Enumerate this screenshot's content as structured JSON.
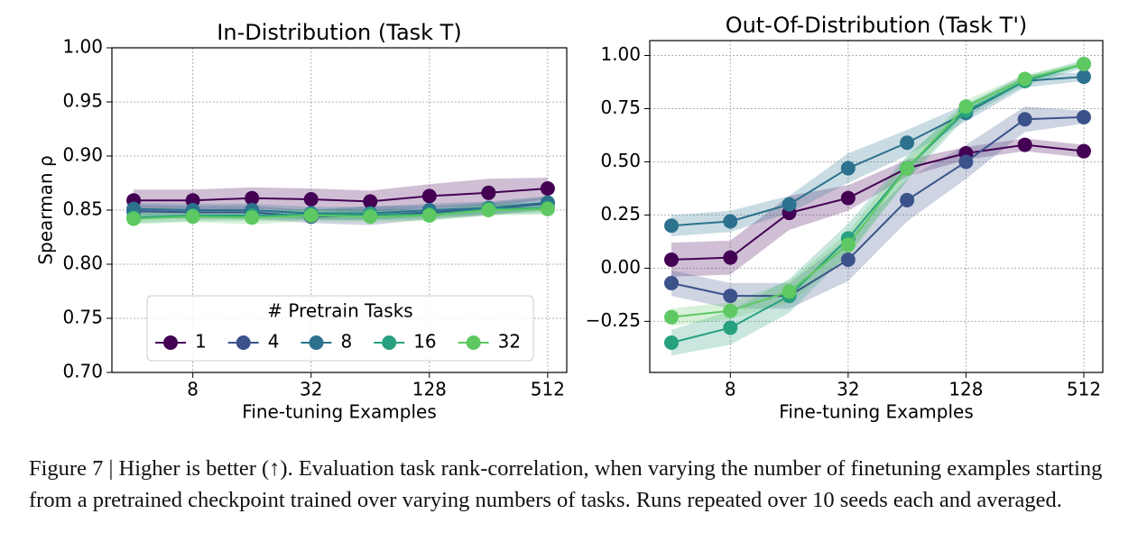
{
  "chart_data": [
    {
      "type": "line",
      "title": "In-Distribution (Task T)",
      "x_label": "Fine-tuning Examples",
      "y_label": "Spearman ρ",
      "x": [
        4,
        8,
        16,
        32,
        64,
        128,
        256,
        512
      ],
      "xlim": [
        3.1,
        640
      ],
      "xscale": "log2",
      "xticks": [
        8,
        32,
        128,
        512
      ],
      "ylim": [
        0.7,
        1.0
      ],
      "yticks": [
        {
          "value": 0.7,
          "label": "0.70"
        },
        0.75,
        {
          "value": 0.8,
          "label": "0.80"
        },
        0.85,
        {
          "value": 0.9,
          "label": "0.90"
        },
        0.95,
        {
          "value": 1.0,
          "label": "1.00"
        }
      ],
      "grid": true,
      "legend": "lower center",
      "legend_title": "# Pretrain Tasks",
      "series": [
        {
          "name": "1",
          "color": "#440154",
          "values": [
            0.859,
            0.859,
            0.861,
            0.86,
            0.858,
            0.863,
            0.866,
            0.87
          ],
          "errors": [
            0.01,
            0.01,
            0.01,
            0.01,
            0.01,
            0.011,
            0.013,
            0.01
          ]
        },
        {
          "name": "4",
          "color": "#3b528b",
          "values": [
            0.849,
            0.848,
            0.848,
            0.844,
            0.845,
            0.848,
            0.851,
            0.856
          ],
          "errors": [
            0.006,
            0.006,
            0.006,
            0.006,
            0.009,
            0.006,
            0.006,
            0.006
          ]
        },
        {
          "name": "8",
          "color": "#2c728e",
          "values": [
            0.851,
            0.85,
            0.85,
            0.847,
            0.847,
            0.85,
            0.852,
            0.857
          ],
          "errors": [
            0.006,
            0.006,
            0.006,
            0.006,
            0.006,
            0.006,
            0.006,
            0.006
          ]
        },
        {
          "name": "16",
          "color": "#27a17f",
          "values": [
            0.843,
            0.845,
            0.845,
            0.846,
            0.846,
            0.846,
            0.851,
            0.852
          ],
          "errors": [
            0.005,
            0.005,
            0.005,
            0.005,
            0.005,
            0.005,
            0.005,
            0.005
          ]
        },
        {
          "name": "32",
          "color": "#5ec962",
          "values": [
            0.842,
            0.844,
            0.843,
            0.845,
            0.844,
            0.845,
            0.85,
            0.851
          ],
          "errors": [
            0.005,
            0.005,
            0.006,
            0.005,
            0.005,
            0.005,
            0.005,
            0.005
          ]
        }
      ]
    },
    {
      "type": "line",
      "title": "Out-Of-Distribution (Task T')",
      "x_label": "Fine-tuning Examples",
      "x": [
        4,
        8,
        16,
        32,
        64,
        128,
        256,
        512
      ],
      "xlim": [
        3.1,
        640
      ],
      "xscale": "log2",
      "xticks": [
        8,
        32,
        128,
        512
      ],
      "ylim": [
        -0.49,
        1.07
      ],
      "yticks": [
        {
          "value": -0.25,
          "label": "−0.25"
        },
        {
          "value": 0,
          "label": "0.00"
        },
        0.25,
        {
          "value": 0.5,
          "label": "0.50"
        },
        0.75,
        {
          "value": 1.0,
          "label": "1.00"
        }
      ],
      "grid": true,
      "series": [
        {
          "color": "#440154",
          "values": [
            0.04,
            0.05,
            0.26,
            0.33,
            0.47,
            0.54,
            0.58,
            0.55
          ],
          "errors": [
            0.08,
            0.08,
            0.08,
            0.06,
            0.04,
            0.03,
            0.03,
            0.03
          ]
        },
        {
          "color": "#3b528b",
          "values": [
            -0.07,
            -0.13,
            -0.13,
            0.04,
            0.32,
            0.5,
            0.7,
            0.71
          ],
          "errors": [
            0.06,
            0.06,
            0.06,
            0.1,
            0.1,
            0.08,
            0.06,
            0.03
          ]
        },
        {
          "color": "#2c728e",
          "values": [
            0.2,
            0.22,
            0.3,
            0.47,
            0.59,
            0.73,
            0.88,
            0.9
          ],
          "errors": [
            0.05,
            0.05,
            0.04,
            0.07,
            0.06,
            0.04,
            0.03,
            0.02
          ]
        },
        {
          "color": "#27a17f",
          "values": [
            -0.35,
            -0.28,
            -0.13,
            0.14,
            0.47,
            0.74,
            0.88,
            0.96
          ],
          "errors": [
            0.06,
            0.08,
            0.08,
            0.07,
            0.06,
            0.03,
            0.02,
            0.02
          ]
        },
        {
          "color": "#5ec962",
          "values": [
            -0.23,
            -0.2,
            -0.11,
            0.11,
            0.47,
            0.76,
            0.89,
            0.96
          ],
          "errors": [
            0.04,
            0.04,
            0.05,
            0.06,
            0.05,
            0.03,
            0.02,
            0.01
          ]
        }
      ]
    }
  ],
  "caption": "Figure 7 | Higher is better (↑). Evaluation task rank-correlation, when varying the number of finetuning examples starting from a pretrained checkpoint trained over varying numbers of tasks. Runs repeated over 10 seeds each and averaged."
}
